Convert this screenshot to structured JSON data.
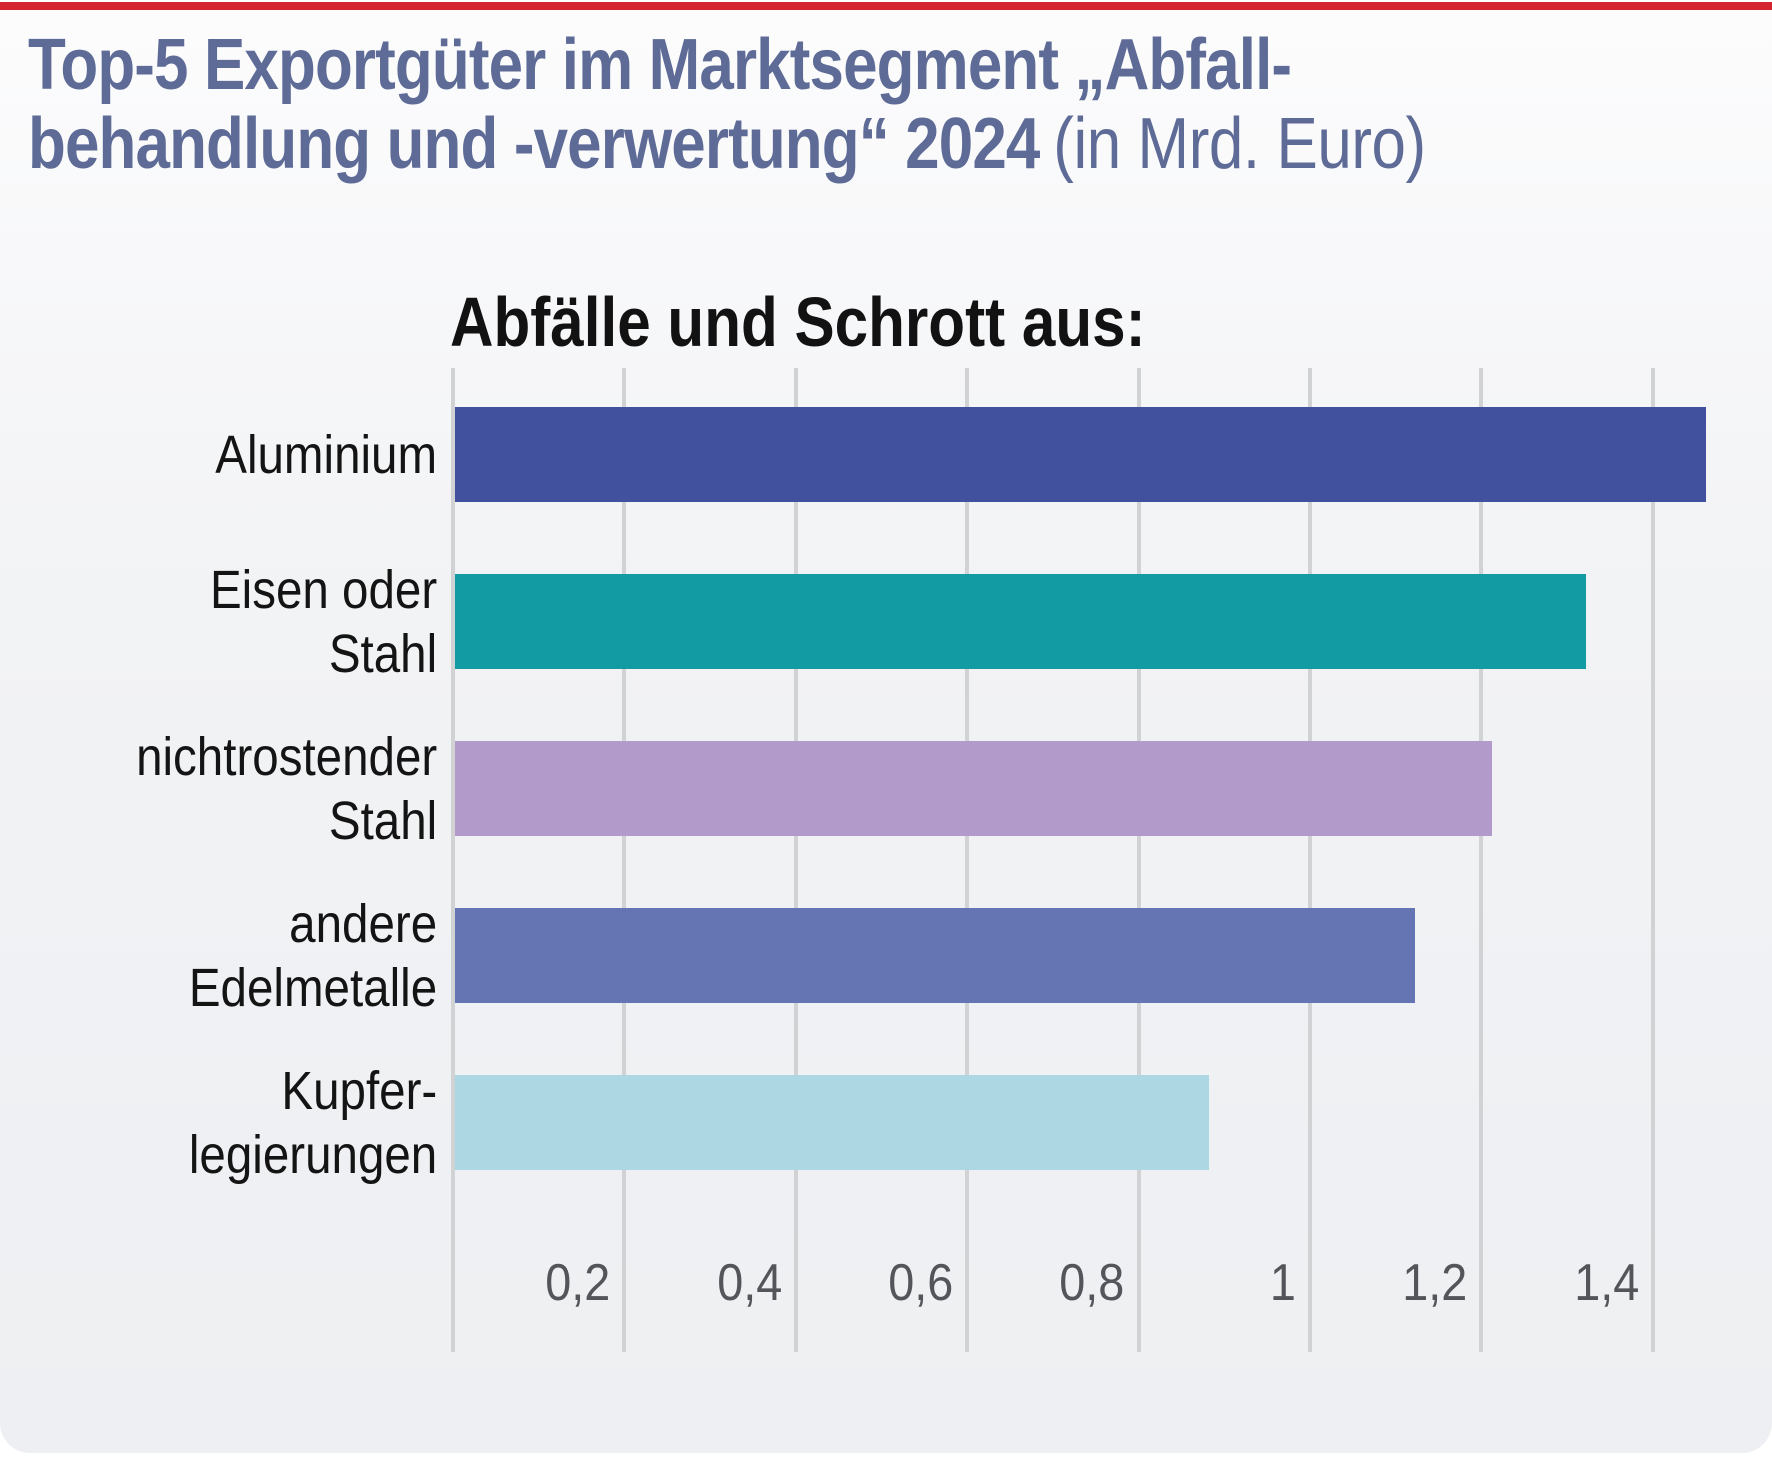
{
  "page": {
    "top_rule_color": "#d3242f",
    "background_top": "#fcfcfd",
    "background_mid": "#f2f3f5",
    "background_bottom": "#edeff2"
  },
  "header": {
    "title_line1": "Top-5 Exportgüter im Marktsegment „Abfall-",
    "title_line2_bold": "behandlung und -verwertung“ 2024",
    "title_line2_light": "(in Mrd. Euro)",
    "title_color": "#5d6b96"
  },
  "chart_data": {
    "type": "bar",
    "orientation": "horizontal",
    "subtitle": "Abfälle und Schrott aus:",
    "subtitle_color": "#121212",
    "unit": "Mrd. Euro",
    "categories": [
      "Aluminium",
      "Eisen oder Stahl",
      "nichtrostender Stahl",
      "andere Edelmetalle",
      "Kupferlegierungen"
    ],
    "category_lines": [
      [
        "Aluminium"
      ],
      [
        "Eisen oder",
        "Stahl"
      ],
      [
        "nichtrostender",
        "Stahl"
      ],
      [
        "andere",
        "Edelmetalle"
      ],
      [
        "Kupfer-",
        "legierungen"
      ]
    ],
    "values": [
      1.46,
      1.32,
      1.21,
      1.12,
      0.88
    ],
    "bar_colors": [
      "#41519e",
      "#129ba3",
      "#b29bcb",
      "#6575b3",
      "#add8e3"
    ],
    "xlim": [
      0,
      1.48
    ],
    "ticks": [
      {
        "value": 0.2,
        "label": "0,2"
      },
      {
        "value": 0.4,
        "label": "0,4"
      },
      {
        "value": 0.6,
        "label": "0,6"
      },
      {
        "value": 0.8,
        "label": "0,8"
      },
      {
        "value": 1,
        "label": "1"
      },
      {
        "value": 1.2,
        "label": "1,2"
      },
      {
        "value": 1.4,
        "label": "1,4"
      }
    ],
    "grid": true,
    "gridline_color": "#d1d2d4",
    "category_label_color": "#141414",
    "tick_label_color": "#53555a",
    "legend": "none"
  }
}
